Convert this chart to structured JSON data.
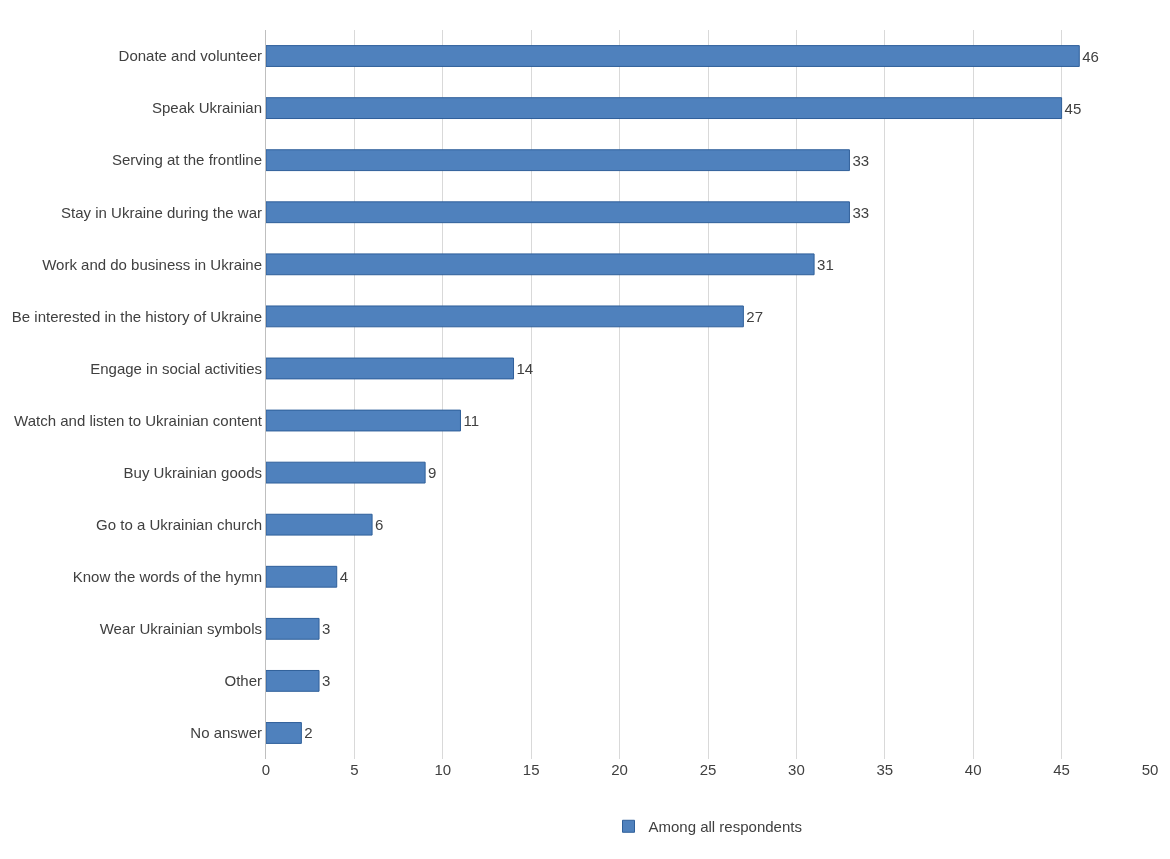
{
  "chart_data": {
    "type": "bar",
    "orientation": "horizontal",
    "categories": [
      "Donate and volunteer",
      "Speak Ukrainian",
      "Serving at the frontline",
      "Stay in Ukraine during the war",
      "Work and do business in Ukraine",
      "Be interested in the history of Ukraine",
      "Engage in social activities",
      "Watch and listen to Ukrainian content",
      "Buy Ukrainian goods",
      "Go to a Ukrainian church",
      "Know the words of the hymn",
      "Wear Ukrainian symbols",
      "Other",
      "No answer"
    ],
    "series": [
      {
        "name": "Among all respondents",
        "color": "#4f81bd",
        "values": [
          46,
          45,
          33,
          33,
          31,
          27,
          14,
          11,
          9,
          6,
          4,
          3,
          3,
          2
        ]
      }
    ],
    "xlim": [
      0,
      50
    ],
    "xticks": [
      0,
      5,
      10,
      15,
      20,
      25,
      30,
      35,
      40,
      45,
      50
    ],
    "grid": "x",
    "legend": "bottom",
    "data_labels": true
  }
}
